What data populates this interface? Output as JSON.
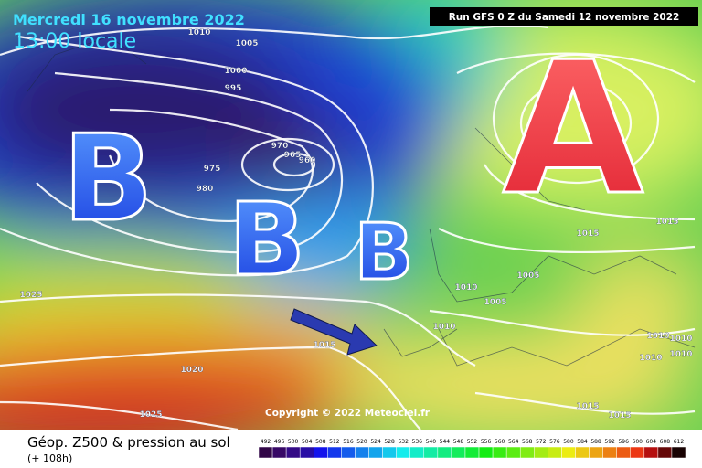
{
  "header": {
    "date": "Mercredi 16 novembre 2022",
    "time": "13:00 locale",
    "run": "Run GFS 0 Z du Samedi 12 novembre 2022"
  },
  "map": {
    "pressure_centers": [
      "B",
      "B",
      "B",
      "A"
    ],
    "isobar_labels": [
      1010,
      1005,
      1000,
      995,
      970,
      965,
      960,
      975,
      980,
      1025,
      1015,
      1020,
      1025,
      1015,
      1015,
      1005,
      1010,
      1005,
      1010,
      1010,
      1010,
      1010,
      1010,
      1015,
      1015
    ],
    "copyright": "Copyright © 2022 Meteociel.fr"
  },
  "legend": {
    "title": "Géop. Z500 & pression au sol",
    "lead": "(+ 108h)",
    "scale": [
      492,
      496,
      500,
      504,
      508,
      512,
      516,
      520,
      524,
      528,
      532,
      536,
      540,
      544,
      548,
      552,
      556,
      560,
      564,
      568,
      572,
      576,
      580,
      584,
      588,
      592,
      596,
      600,
      604,
      608,
      612
    ]
  }
}
